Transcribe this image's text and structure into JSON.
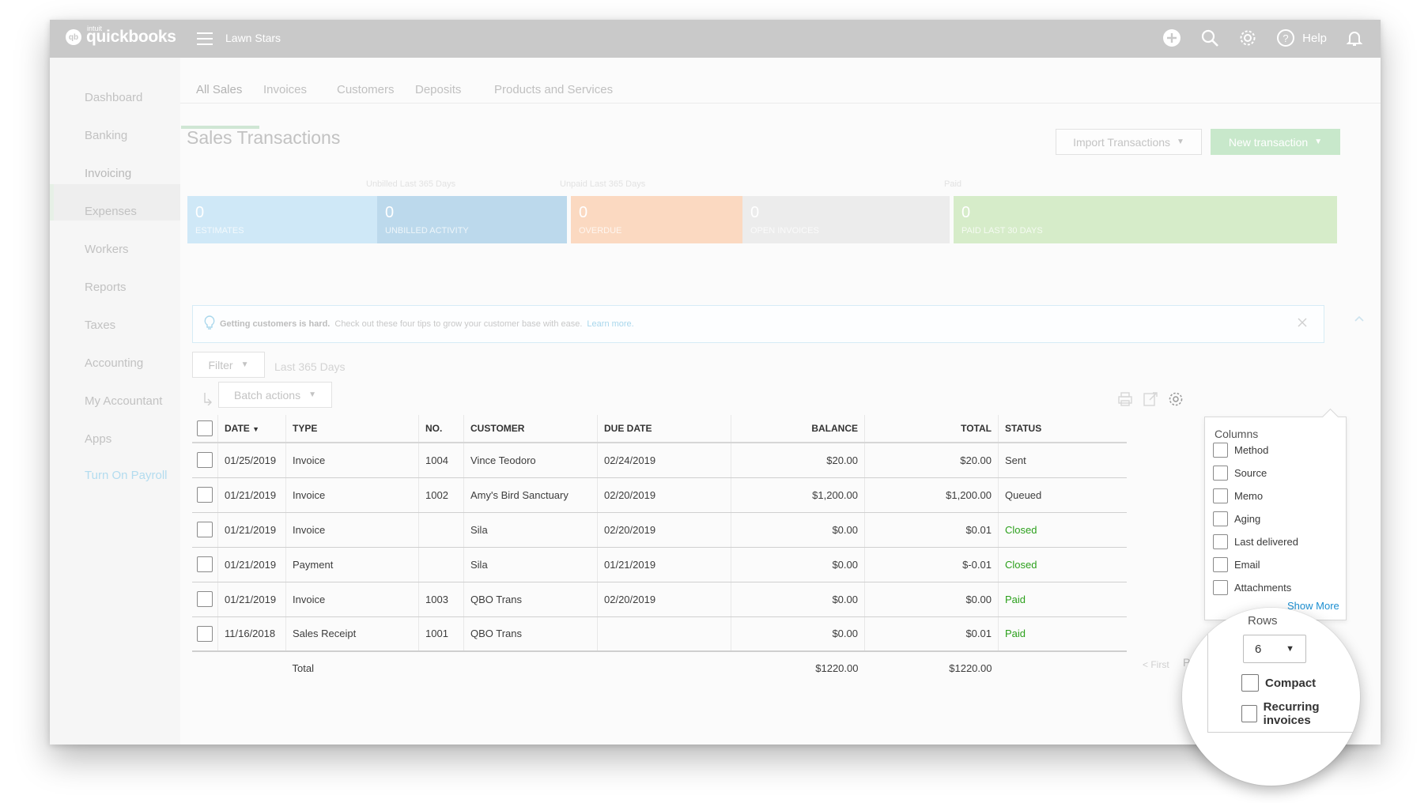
{
  "app": {
    "logo_text": "quickbooks",
    "logo_sup": "intuit",
    "company_name": "Lawn Stars",
    "help_label": "Help"
  },
  "sidebar": {
    "items": [
      {
        "label": "Dashboard"
      },
      {
        "label": "Banking"
      },
      {
        "label": "Invoicing"
      },
      {
        "label": "Expenses"
      },
      {
        "label": "Workers"
      },
      {
        "label": "Reports"
      },
      {
        "label": "Taxes"
      },
      {
        "label": "Accounting"
      },
      {
        "label": "My Accountant"
      },
      {
        "label": "Apps"
      }
    ],
    "payroll_link": "Turn On Payroll",
    "active": "Invoicing"
  },
  "tabs": [
    {
      "label": "All Sales"
    },
    {
      "label": "Invoices"
    },
    {
      "label": "Customers"
    },
    {
      "label": "Deposits"
    },
    {
      "label": "Products and Services"
    }
  ],
  "page": {
    "title": "Sales Transactions",
    "import_button": "Import Transactions",
    "new_button": "New transaction"
  },
  "money_bar": {
    "labels": {
      "unbilled": "Unbilled Last 365 Days",
      "unpaid": "Unpaid Last 365 Days",
      "paid": "Paid"
    },
    "figures": [
      {
        "value": "0",
        "label": "ESTIMATES",
        "color": "#cfe8f7"
      },
      {
        "value": "0",
        "label": "UNBILLED ACTIVITY",
        "color": "#bcd9ec"
      },
      {
        "value": "0",
        "label": "OVERDUE",
        "color": "#fbd9c1"
      },
      {
        "value": "0",
        "label": "OPEN INVOICES",
        "color": "#ececec"
      },
      {
        "value": "0",
        "label": "PAID LAST 30 DAYS",
        "color": "#d6ecc9"
      }
    ]
  },
  "tip": {
    "bold": "Getting customers is hard.",
    "text": "Check out these four tips to grow your customer base with ease.",
    "link": "Learn more."
  },
  "toolbar": {
    "filter_label": "Filter",
    "range_label": "Last 365 Days",
    "batch_label": "Batch actions"
  },
  "table": {
    "headers": {
      "date": "DATE",
      "type": "TYPE",
      "no": "NO.",
      "customer": "CUSTOMER",
      "due_date": "DUE DATE",
      "balance": "BALANCE",
      "total": "TOTAL",
      "status": "STATUS"
    },
    "rows": [
      {
        "date": "01/25/2019",
        "type": "Invoice",
        "no": "1004",
        "customer": "Vince Teodoro",
        "due_date": "02/24/2019",
        "balance": "$20.00",
        "total": "$20.00",
        "status": "Sent"
      },
      {
        "date": "01/21/2019",
        "type": "Invoice",
        "no": "1002",
        "customer": "Amy's Bird Sanctuary",
        "due_date": "02/20/2019",
        "balance": "$1,200.00",
        "total": "$1,200.00",
        "status": "Queued"
      },
      {
        "date": "01/21/2019",
        "type": "Invoice",
        "no": "",
        "customer": "Sila",
        "due_date": "02/20/2019",
        "balance": "$0.00",
        "total": "$0.01",
        "status": "Closed"
      },
      {
        "date": "01/21/2019",
        "type": "Payment",
        "no": "",
        "customer": "Sila",
        "due_date": "01/21/2019",
        "balance": "$0.00",
        "total": "$-0.01",
        "status": "Closed"
      },
      {
        "date": "01/21/2019",
        "type": "Invoice",
        "no": "1003",
        "customer": "QBO Trans",
        "due_date": "02/20/2019",
        "balance": "$0.00",
        "total": "$0.00",
        "status": "Paid"
      },
      {
        "date": "11/16/2018",
        "type": "Sales Receipt",
        "no": "1001",
        "customer": "QBO Trans",
        "due_date": "",
        "balance": "$0.00",
        "total": "$0.01",
        "status": "Paid"
      }
    ],
    "total_row": {
      "label": "Total",
      "balance": "$1220.00",
      "total": "$1220.00"
    }
  },
  "pager": {
    "first": "< First",
    "prev": "Prev"
  },
  "column_settings": {
    "title": "Columns",
    "columns": [
      {
        "label": "Method"
      },
      {
        "label": "Source"
      },
      {
        "label": "Memo"
      },
      {
        "label": "Aging"
      },
      {
        "label": "Last delivered"
      },
      {
        "label": "Email"
      },
      {
        "label": "Attachments"
      }
    ],
    "show_more": "Show More",
    "rows_label": "Rows",
    "rows_value": "6",
    "compact_label": "Compact",
    "recurring_label": "Recurring invoices"
  }
}
